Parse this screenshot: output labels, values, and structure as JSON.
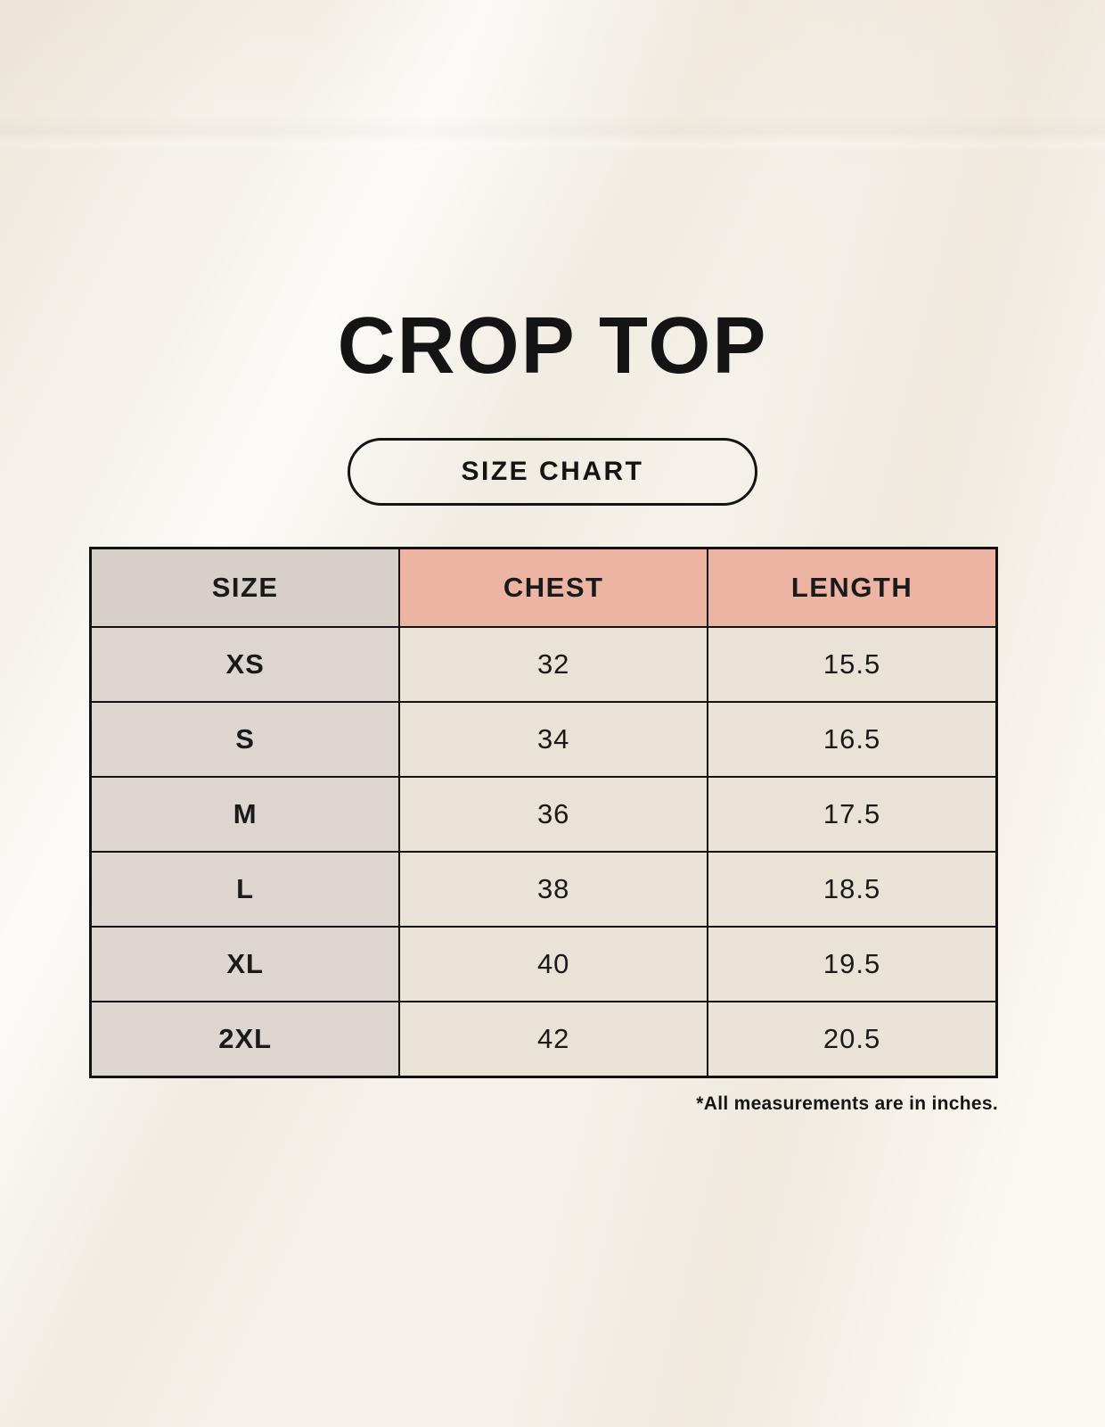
{
  "page": {
    "title": "CROP TOP",
    "size_chart_label": "SIZE CHART",
    "footnote": "*All measurements are in inches."
  },
  "table": {
    "headers": {
      "size": "SIZE",
      "chest": "CHEST",
      "length": "LENGTH"
    },
    "rows": [
      {
        "size": "XS",
        "chest": "32",
        "length": "15.5"
      },
      {
        "size": "S",
        "chest": "34",
        "length": "16.5"
      },
      {
        "size": "M",
        "chest": "36",
        "length": "17.5"
      },
      {
        "size": "L",
        "chest": "38",
        "length": "18.5"
      },
      {
        "size": "XL",
        "chest": "40",
        "length": "19.5"
      },
      {
        "size": "2XL",
        "chest": "42",
        "length": "20.5"
      }
    ],
    "units": "inches"
  },
  "colors": {
    "background": "#f6f2ea",
    "header_size_bg": "#d6d0c9",
    "header_accent_bg": "#edb4a4",
    "row_label_bg": "#ddd6d0",
    "row_value_bg": "#e9e2d6",
    "border": "#121212",
    "text": "#1a1a1a"
  }
}
